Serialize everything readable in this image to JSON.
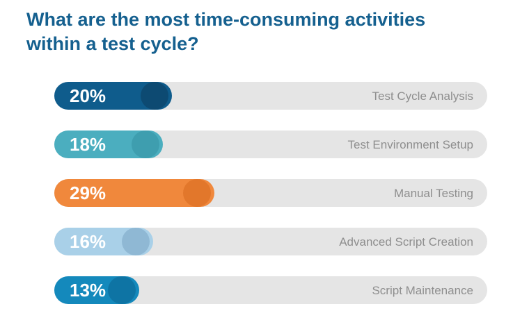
{
  "header": {
    "title": "What are the most time-consuming activities within a test cycle?"
  },
  "colors": {
    "title": "#15608F",
    "track": "#E5E5E5",
    "category_label": "#8E8E8E",
    "percent_text": "#FFFFFF",
    "background": "#FFFFFF"
  },
  "chart_data": {
    "type": "bar",
    "orientation": "horizontal",
    "title": "What are the most time-consuming activities within a test cycle?",
    "categories": [
      "Test Cycle Analysis",
      "Test Environment Setup",
      "Manual Testing",
      "Advanced Script Creation",
      "Script Maintenance"
    ],
    "values": [
      20,
      18,
      29,
      16,
      13
    ],
    "unit": "%",
    "value_labels": [
      "20%",
      "18%",
      "29%",
      "16%",
      "13%"
    ],
    "bar_colors": [
      "#0F5C8C",
      "#4BAEBF",
      "#F0883C",
      "#A9D0E8",
      "#1489BC"
    ],
    "bar_cap_colors": [
      "#0D4A72",
      "#3E9EAF",
      "#E2772B",
      "#8FB8D4",
      "#0E74A4"
    ],
    "track_color": "#E5E5E5",
    "legend": "none",
    "grid": false,
    "xlabel": "",
    "ylabel": ""
  },
  "bars": [
    {
      "pct": "20%",
      "label": "Test Cycle Analysis",
      "fill": "#0F5C8C",
      "cap": "#0D4A72"
    },
    {
      "pct": "18%",
      "label": "Test Environment Setup",
      "fill": "#4BAEBF",
      "cap": "#3E9EAF"
    },
    {
      "pct": "29%",
      "label": "Manual Testing",
      "fill": "#F0883C",
      "cap": "#E2772B"
    },
    {
      "pct": "16%",
      "label": "Advanced Script Creation",
      "fill": "#A9D0E8",
      "cap": "#8FB8D4"
    },
    {
      "pct": "13%",
      "label": "Script Maintenance",
      "fill": "#1489BC",
      "cap": "#0E74A4"
    }
  ]
}
